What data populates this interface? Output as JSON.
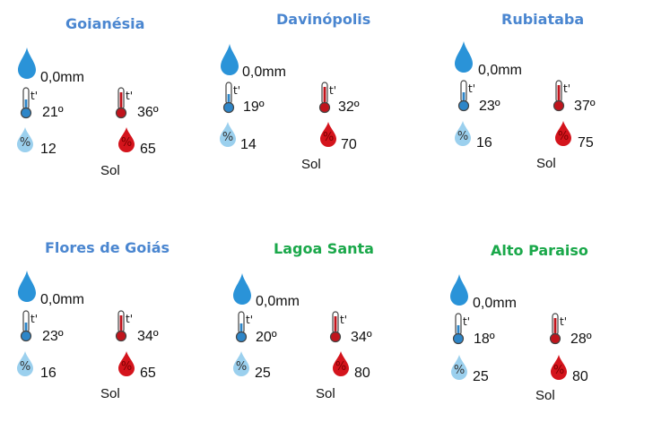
{
  "colors": {
    "title_blue": "#4a86d0",
    "title_green": "#1aa84a",
    "rain_blue": "#2a93d8",
    "therm_blue": "#2e86c8",
    "therm_red": "#c0141c",
    "hum_light": "#9bd0ee",
    "hum_red": "#d4141c"
  },
  "cities": [
    {
      "name": "Goianésia",
      "title_color": "blue",
      "rain": "0,0mm",
      "tmin": "21º",
      "tmax": "36º",
      "hmin": "12",
      "hmax": "65",
      "condition": "Sol"
    },
    {
      "name": "Davinópolis",
      "title_color": "blue",
      "rain": "0,0mm",
      "tmin": "19º",
      "tmax": "32º",
      "hmin": "14",
      "hmax": "70",
      "condition": "Sol"
    },
    {
      "name": "Rubiataba",
      "title_color": "blue",
      "rain": "0,0mm",
      "tmin": "23º",
      "tmax": "37º",
      "hmin": "16",
      "hmax": "75",
      "condition": "Sol"
    },
    {
      "name": "Flores de Goiás",
      "title_color": "blue",
      "rain": "0,0mm",
      "tmin": "23º",
      "tmax": "34º",
      "hmin": "16",
      "hmax": "65",
      "condition": "Sol"
    },
    {
      "name": "Lagoa Santa",
      "title_color": "green",
      "rain": "0,0mm",
      "tmin": "20º",
      "tmax": "34º",
      "hmin": "25",
      "hmax": "80",
      "condition": "Sol"
    },
    {
      "name": "Alto Paraiso",
      "title_color": "green",
      "rain": "0,0mm",
      "tmin": "18º",
      "tmax": "28º",
      "hmin": "25",
      "hmax": "80",
      "condition": "Sol"
    }
  ],
  "icons": {
    "rain": "raindrop-icon",
    "temp_min": "thermometer-cold-icon",
    "temp_max": "thermometer-hot-icon",
    "hum_min": "humidity-low-icon",
    "hum_max": "humidity-high-icon",
    "thermo_label": "t'",
    "hum_label": "%"
  }
}
